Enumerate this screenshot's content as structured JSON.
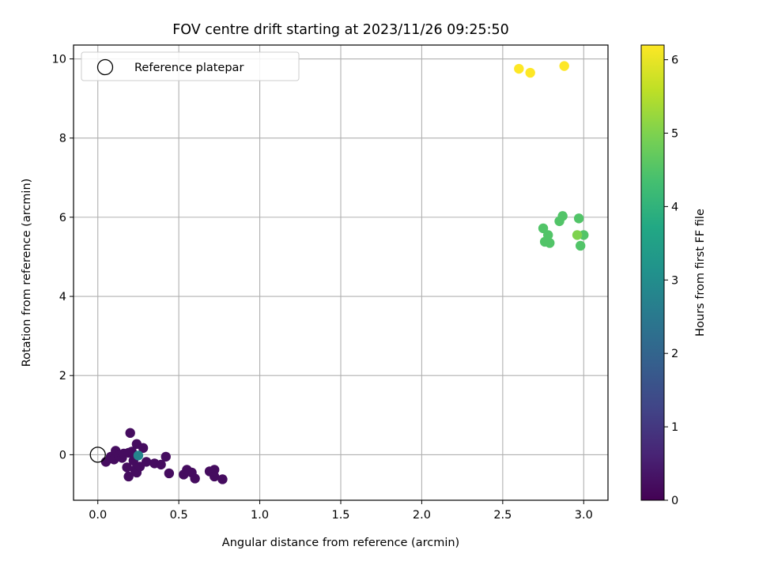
{
  "chart_data": {
    "type": "scatter",
    "title": "FOV centre drift starting at 2023/11/26 09:25:50",
    "xlabel": "Angular distance from reference (arcmin)",
    "ylabel": "Rotation from reference (arcmin)",
    "xlim": [
      -0.15,
      3.15
    ],
    "ylim": [
      -1.15,
      10.35
    ],
    "xticks": [
      0.0,
      0.5,
      1.0,
      1.5,
      2.0,
      2.5,
      3.0
    ],
    "xtick_labels": [
      "0.0",
      "0.5",
      "1.0",
      "1.5",
      "2.0",
      "2.5",
      "3.0"
    ],
    "yticks": [
      0,
      2,
      4,
      6,
      8,
      10
    ],
    "ytick_labels": [
      "0",
      "2",
      "4",
      "6",
      "8",
      "10"
    ],
    "grid": true,
    "legend": {
      "label": "Reference platepar",
      "placement": "upper-left"
    },
    "reference_point": {
      "x": 0.0,
      "y": 0.0
    },
    "colorbar": {
      "label": "Hours from first FF file",
      "colormap": "viridis",
      "range": [
        0,
        6.2
      ],
      "ticks": [
        0,
        1,
        2,
        3,
        4,
        5,
        6
      ],
      "tick_labels": [
        "0",
        "1",
        "2",
        "3",
        "4",
        "5",
        "6"
      ]
    },
    "points": [
      {
        "x": 0.05,
        "y": -0.18,
        "hours": 0.2
      },
      {
        "x": 0.08,
        "y": -0.05,
        "hours": 0.2
      },
      {
        "x": 0.1,
        "y": -0.12,
        "hours": 0.2
      },
      {
        "x": 0.11,
        "y": 0.1,
        "hours": 0.2
      },
      {
        "x": 0.13,
        "y": -0.02,
        "hours": 0.2
      },
      {
        "x": 0.15,
        "y": -0.08,
        "hours": 0.2
      },
      {
        "x": 0.16,
        "y": 0.03,
        "hours": 0.2
      },
      {
        "x": 0.18,
        "y": -0.32,
        "hours": 0.2
      },
      {
        "x": 0.19,
        "y": 0.05,
        "hours": 0.2
      },
      {
        "x": 0.19,
        "y": -0.55,
        "hours": 0.2
      },
      {
        "x": 0.2,
        "y": 0.55,
        "hours": 0.2
      },
      {
        "x": 0.21,
        "y": 0.08,
        "hours": 0.2
      },
      {
        "x": 0.22,
        "y": -0.15,
        "hours": 0.2
      },
      {
        "x": 0.23,
        "y": -0.38,
        "hours": 0.2
      },
      {
        "x": 0.24,
        "y": 0.27,
        "hours": 0.2
      },
      {
        "x": 0.24,
        "y": -0.45,
        "hours": 0.2
      },
      {
        "x": 0.26,
        "y": -0.3,
        "hours": 0.2
      },
      {
        "x": 0.28,
        "y": 0.17,
        "hours": 0.2
      },
      {
        "x": 0.3,
        "y": -0.18,
        "hours": 0.2
      },
      {
        "x": 0.35,
        "y": -0.22,
        "hours": 0.2
      },
      {
        "x": 0.39,
        "y": -0.25,
        "hours": 0.2
      },
      {
        "x": 0.42,
        "y": -0.05,
        "hours": 0.2
      },
      {
        "x": 0.44,
        "y": -0.47,
        "hours": 0.2
      },
      {
        "x": 0.53,
        "y": -0.5,
        "hours": 0.2
      },
      {
        "x": 0.55,
        "y": -0.38,
        "hours": 0.2
      },
      {
        "x": 0.58,
        "y": -0.45,
        "hours": 0.2
      },
      {
        "x": 0.6,
        "y": -0.6,
        "hours": 0.2
      },
      {
        "x": 0.69,
        "y": -0.42,
        "hours": 0.2
      },
      {
        "x": 0.72,
        "y": -0.38,
        "hours": 0.2
      },
      {
        "x": 0.72,
        "y": -0.55,
        "hours": 0.2
      },
      {
        "x": 0.77,
        "y": -0.62,
        "hours": 0.2
      },
      {
        "x": 0.25,
        "y": -0.02,
        "hours": 2.8
      },
      {
        "x": 2.75,
        "y": 5.72,
        "hours": 4.5
      },
      {
        "x": 2.76,
        "y": 5.38,
        "hours": 4.5
      },
      {
        "x": 2.78,
        "y": 5.55,
        "hours": 4.5
      },
      {
        "x": 2.79,
        "y": 5.35,
        "hours": 4.5
      },
      {
        "x": 2.85,
        "y": 5.9,
        "hours": 4.5
      },
      {
        "x": 2.87,
        "y": 6.03,
        "hours": 4.5
      },
      {
        "x": 2.97,
        "y": 5.97,
        "hours": 4.5
      },
      {
        "x": 2.98,
        "y": 5.28,
        "hours": 4.5
      },
      {
        "x": 3.0,
        "y": 5.55,
        "hours": 4.5
      },
      {
        "x": 2.96,
        "y": 5.55,
        "hours": 5.0
      },
      {
        "x": 2.6,
        "y": 9.75,
        "hours": 6.2
      },
      {
        "x": 2.67,
        "y": 9.65,
        "hours": 6.2
      },
      {
        "x": 2.88,
        "y": 9.82,
        "hours": 6.2
      }
    ]
  }
}
